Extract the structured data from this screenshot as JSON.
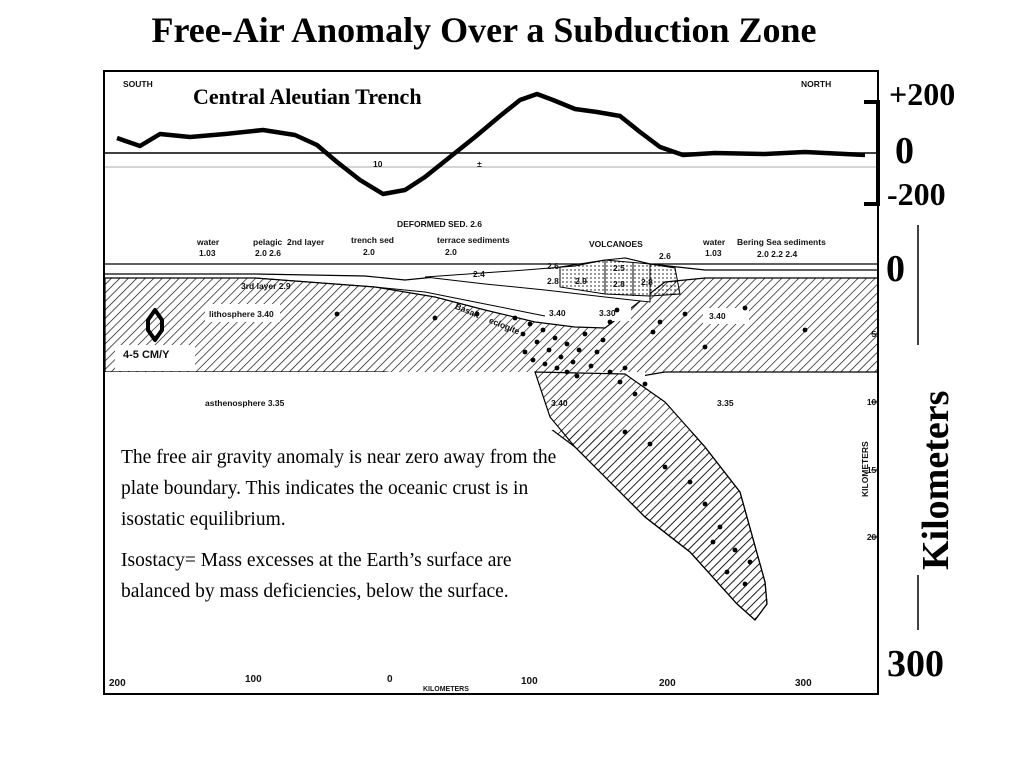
{
  "title": "Free-Air Anomaly Over a Subduction Zone",
  "figure": {
    "subtitle": "Central Aleutian Trench",
    "direction_left": "SOUTH",
    "direction_right": "NORTH",
    "profile_ticks": [
      "10",
      "±"
    ],
    "layers": {
      "deformed_sed": "DEFORMED SED. 2.6",
      "water_left": "water",
      "water_left_density": "1.03",
      "pelagic": "pelagic",
      "second_layer": "2nd layer",
      "pelagic_density": "2.0  2.6",
      "trench_sed": "trench sed",
      "trench_sed_density": "2.0",
      "terrace": "terrace sediments",
      "terrace_density": "2.0",
      "volcanoes": "VOLCANOES",
      "volcanoes_density": "2.6",
      "water_right": "water",
      "water_right_density": "1.03",
      "bering": "Bering Sea sediments",
      "bering_density": "2.0  2.2  2.4",
      "third_layer": "3rd layer 2.9",
      "lithosphere": "lithosphere 3.40",
      "rate": "4-5 CM/Y",
      "asthenosphere": "asthenosphere 3.35",
      "d_24": "2.4",
      "d_26": "2.6",
      "d_25": "2.5",
      "d_29": "2.9",
      "d_28a": "2.8",
      "d_28b": "2.8",
      "d_28c": "2.8",
      "basalt": "Basalt",
      "eclogite": "eclogite",
      "d_340a": "3.40",
      "d_330": "3.30",
      "d_340b": "3.40",
      "d_340c": "3.40",
      "d_335": "3.35"
    },
    "depth_ticks": [
      "50",
      "100",
      "150",
      "200"
    ],
    "depth_axis_label": "KILOMETERS",
    "x_ticks": [
      "200",
      "100",
      "0",
      "100",
      "200",
      "300"
    ],
    "x_axis_label": "KILOMETERS",
    "note_paragraphs": [
      "The free air gravity anomaly is near zero away from the plate boundary.  This indicates the oceanic crust is in isostatic equilibrium.",
      "Isostacy= Mass excesses at the Earth’s surface are balanced by mass deficiencies, below the surface."
    ]
  },
  "gravity_scale": {
    "top": "+200",
    "zero": "0",
    "bottom": "-200"
  },
  "depth_scale": {
    "top": "0",
    "bottom": "300",
    "label": "Kilometers"
  }
}
